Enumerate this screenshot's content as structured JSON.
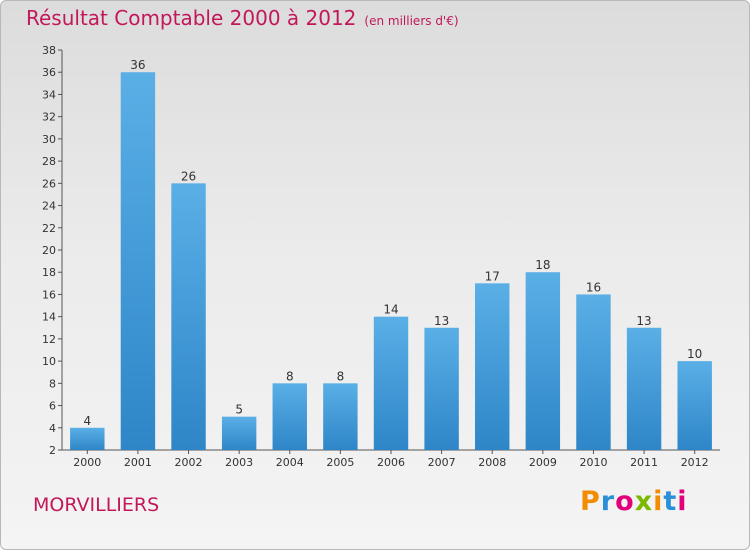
{
  "title": "Résultat Comptable 2000 à 2012",
  "subtitle": "(en milliers d'€)",
  "location": "MORVILLIERS",
  "logo": {
    "letters": [
      "P",
      "r",
      "o",
      "x",
      "i",
      "t",
      "i"
    ],
    "colors": [
      "#f28c00",
      "#2a8fd6",
      "#e2007a",
      "#7bb800",
      "#f28c00",
      "#2a8fd6",
      "#e2007a"
    ]
  },
  "colors": {
    "bar": "#2e86c8",
    "bar_light": "#5aafe6",
    "title": "#c2185b"
  },
  "chart_data": {
    "type": "bar",
    "title": "Résultat Comptable 2000 à 2012",
    "subtitle": "(en milliers d'€)",
    "xlabel": "",
    "ylabel": "",
    "categories": [
      "2000",
      "2001",
      "2002",
      "2003",
      "2004",
      "2005",
      "2006",
      "2007",
      "2008",
      "2009",
      "2010",
      "2011",
      "2012"
    ],
    "values": [
      4,
      36,
      26,
      5,
      8,
      8,
      14,
      13,
      17,
      18,
      16,
      13,
      10
    ],
    "ylim": [
      2,
      38
    ],
    "yticks": [
      2,
      4,
      6,
      8,
      10,
      12,
      14,
      16,
      18,
      20,
      22,
      24,
      26,
      28,
      30,
      32,
      34,
      36,
      38
    ],
    "grid": false,
    "data_labels": true
  }
}
